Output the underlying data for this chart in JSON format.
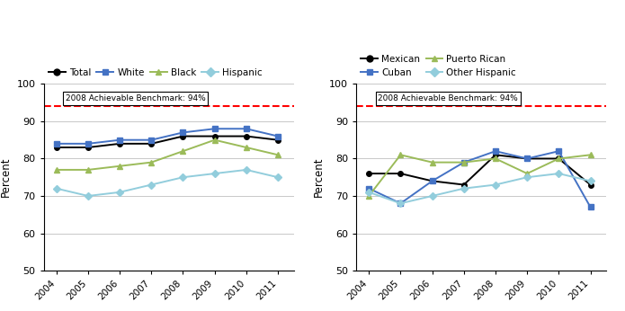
{
  "years": [
    2004,
    2005,
    2006,
    2007,
    2008,
    2009,
    2010,
    2011
  ],
  "left": {
    "Total": [
      83,
      83,
      84,
      84,
      86,
      86,
      86,
      85
    ],
    "White": [
      84,
      84,
      85,
      85,
      87,
      88,
      88,
      86
    ],
    "Black": [
      77,
      77,
      78,
      79,
      82,
      85,
      83,
      81
    ],
    "Hispanic": [
      72,
      70,
      71,
      73,
      75,
      76,
      77,
      75
    ]
  },
  "right": {
    "Mexican": [
      76,
      76,
      74,
      73,
      81,
      80,
      80,
      73
    ],
    "Puerto Rican": [
      70,
      81,
      79,
      79,
      80,
      76,
      80,
      81
    ],
    "Cuban": [
      72,
      68,
      74,
      79,
      82,
      80,
      82,
      67
    ],
    "Other Hispanic": [
      71,
      68,
      70,
      72,
      73,
      75,
      76,
      74
    ]
  },
  "benchmark": 94,
  "benchmark_label": "2008 Achievable Benchmark: 94%",
  "ylim": [
    50,
    100
  ],
  "yticks": [
    50,
    60,
    70,
    80,
    90,
    100
  ],
  "ylabel": "Percent",
  "colors_left": {
    "Total": "#000000",
    "White": "#4472c4",
    "Black": "#9bbb59",
    "Hispanic": "#92cddc"
  },
  "markers_left": {
    "Total": "o",
    "White": "s",
    "Black": "^",
    "Hispanic": "D"
  },
  "colors_right": {
    "Mexican": "#000000",
    "Puerto Rican": "#9bbb59",
    "Cuban": "#4472c4",
    "Other Hispanic": "#92cddc"
  },
  "markers_right": {
    "Mexican": "o",
    "Puerto Rican": "^",
    "Cuban": "s",
    "Other Hispanic": "D"
  },
  "left_legend_order": [
    "Total",
    "White",
    "Black",
    "Hispanic"
  ],
  "right_legend_order": [
    "Mexican",
    "Cuban",
    "Puerto Rican",
    "Other Hispanic"
  ]
}
